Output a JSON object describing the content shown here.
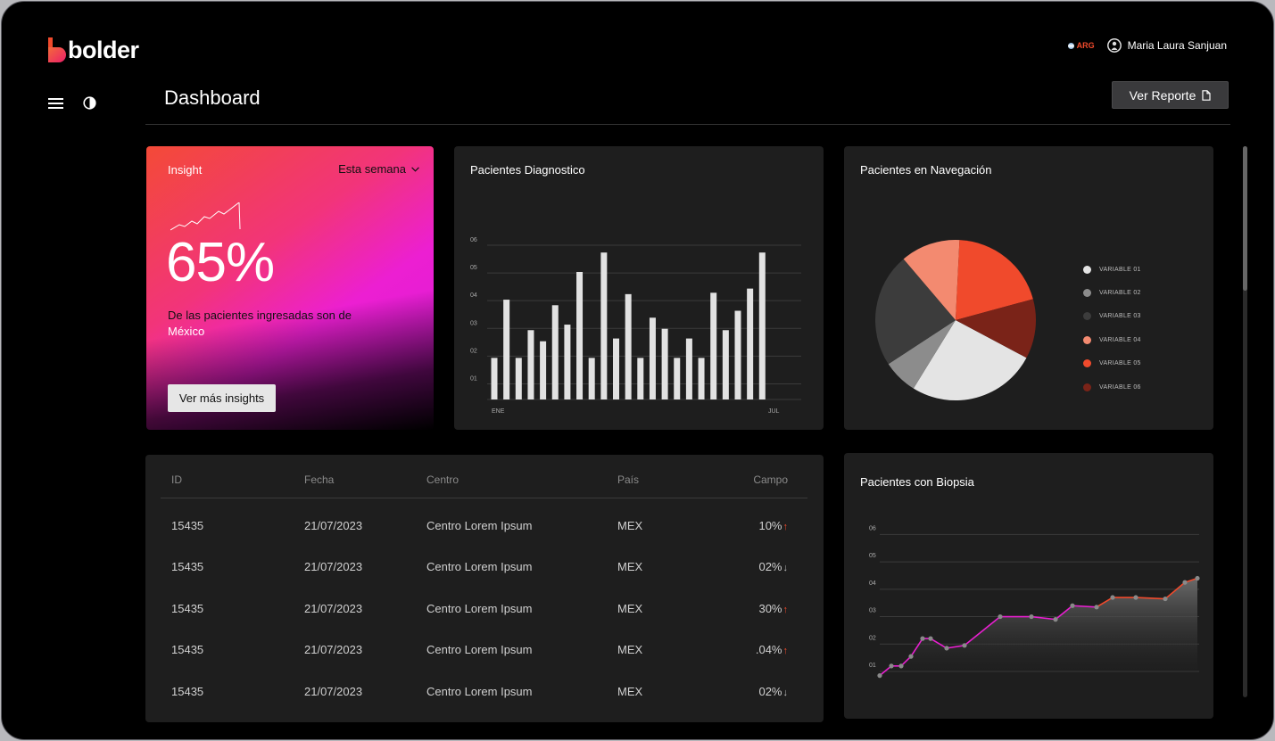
{
  "brand": {
    "name": "bolder"
  },
  "header": {
    "country": "ARG",
    "user_name": "Maria Laura Sanjuan"
  },
  "page": {
    "title": "Dashboard",
    "report_button": "Ver Reporte"
  },
  "colors": {
    "accent": "#f04a2c",
    "pink": "#ec1fd2",
    "card_bg": "#1e1e1e"
  },
  "insight": {
    "label": "Insight",
    "period": "Esta semana",
    "percent": "65%",
    "description": "De las pacientes ingresadas son de",
    "description_highlight": "México",
    "button": "Ver más insights"
  },
  "bar_chart": {
    "title": "Pacientes Diagnostico",
    "chart_data": {
      "type": "bar",
      "y_ticks": [
        "01",
        "02",
        "03",
        "04",
        "05",
        "06"
      ],
      "ylim": [
        0.5,
        6
      ],
      "x_start_label": "ENE",
      "x_end_label": "JUL",
      "values": [
        2,
        4.1,
        2,
        3,
        2.6,
        3.9,
        3.2,
        5.1,
        2,
        5.8,
        2.7,
        4.3,
        2,
        3.45,
        3.05,
        2,
        2.7,
        2,
        4.35,
        3,
        3.7,
        4.5,
        5.8
      ]
    }
  },
  "pie_chart": {
    "title": "Pacientes en Navegación",
    "chart_data": {
      "type": "pie",
      "slices": [
        {
          "label": "VARIABLE 01",
          "value": 26,
          "color": "#e4e4e4"
        },
        {
          "label": "VARIABLE 02",
          "value": 7,
          "color": "#8c8c8c"
        },
        {
          "label": "VARIABLE 03",
          "value": 23,
          "color": "#3c3c3c"
        },
        {
          "label": "VARIABLE 04",
          "value": 12,
          "color": "#f38a70"
        },
        {
          "label": "VARIABLE 05",
          "value": 20,
          "color": "#f04a2c"
        },
        {
          "label": "VARIABLE 06",
          "value": 12,
          "color": "#7a2318"
        }
      ]
    }
  },
  "table": {
    "columns": [
      "ID",
      "Fecha",
      "Centro",
      "País",
      "Campo"
    ],
    "rows": [
      {
        "id": "15435",
        "fecha": "21/07/2023",
        "centro": "Centro Lorem Ipsum",
        "pais": "MEX",
        "campo": "10%",
        "trend": "↑"
      },
      {
        "id": "15435",
        "fecha": "21/07/2023",
        "centro": "Centro Lorem Ipsum",
        "pais": "MEX",
        "campo": "02%",
        "trend": "↓"
      },
      {
        "id": "15435",
        "fecha": "21/07/2023",
        "centro": "Centro Lorem Ipsum",
        "pais": "MEX",
        "campo": "30%",
        "trend": "↑"
      },
      {
        "id": "15435",
        "fecha": "21/07/2023",
        "centro": "Centro Lorem Ipsum",
        "pais": "MEX",
        "campo": ".04%",
        "trend": "↑"
      },
      {
        "id": "15435",
        "fecha": "21/07/2023",
        "centro": "Centro Lorem Ipsum",
        "pais": "MEX",
        "campo": "02%",
        "trend": "↓"
      }
    ]
  },
  "line_chart": {
    "title": "Pacientes con Biopsia",
    "chart_data": {
      "type": "area",
      "y_ticks": [
        "01",
        "02",
        "03",
        "04",
        "05",
        "06"
      ],
      "ylim": [
        0.8,
        6
      ],
      "values": [
        0.85,
        1.2,
        1.2,
        1.55,
        2.2,
        2.2,
        1.85,
        1.95,
        3.0,
        3.0,
        2.9,
        3.4,
        3.35,
        3.7,
        3.7,
        3.65,
        4.25,
        4.4
      ]
    }
  }
}
